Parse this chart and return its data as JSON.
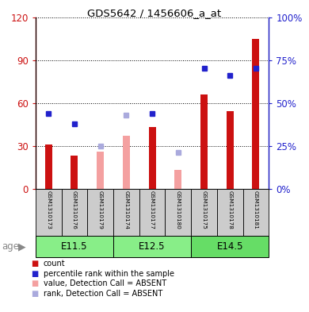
{
  "title": "GDS5642 / 1456606_a_at",
  "samples": [
    "GSM1310173",
    "GSM1310176",
    "GSM1310179",
    "GSM1310174",
    "GSM1310177",
    "GSM1310180",
    "GSM1310175",
    "GSM1310178",
    "GSM1310181"
  ],
  "age_groups": [
    {
      "label": "E11.5",
      "start": 0,
      "end": 3
    },
    {
      "label": "E12.5",
      "start": 3,
      "end": 6
    },
    {
      "label": "E14.5",
      "start": 6,
      "end": 9
    }
  ],
  "count_values": [
    31,
    23,
    null,
    null,
    43,
    null,
    66,
    54,
    105
  ],
  "percentile_values": [
    44,
    38,
    null,
    null,
    44,
    null,
    70,
    66,
    70
  ],
  "absent_value": [
    null,
    null,
    26,
    37,
    null,
    13,
    null,
    null,
    null
  ],
  "absent_rank": [
    null,
    null,
    25,
    43,
    null,
    21,
    null,
    null,
    null
  ],
  "ylim_left": [
    0,
    120
  ],
  "ylim_right": [
    0,
    100
  ],
  "yticks_left": [
    0,
    30,
    60,
    90,
    120
  ],
  "yticks_right": [
    0,
    25,
    50,
    75,
    100
  ],
  "yticklabels_left": [
    "0",
    "30",
    "60",
    "90",
    "120"
  ],
  "yticklabels_right": [
    "0%",
    "25%",
    "50%",
    "75%",
    "100%"
  ],
  "count_color": "#cc1111",
  "percentile_color": "#2222cc",
  "absent_value_color": "#f4a0a0",
  "absent_rank_color": "#aaaadd",
  "age_bg_color": "#88ee88",
  "age_bg_color2": "#66dd66",
  "sample_bg_color": "#cccccc",
  "bar_width": 0.5,
  "grid_color": "black",
  "grid_linestyle": "dotted"
}
